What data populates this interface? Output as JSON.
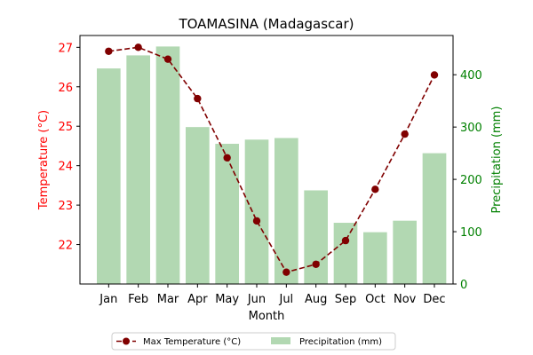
{
  "chart_data": {
    "type": "bar+line",
    "title": "TOAMASINA (Madagascar)",
    "xlabel": "Month",
    "categories": [
      "Jan",
      "Feb",
      "Mar",
      "Apr",
      "May",
      "Jun",
      "Jul",
      "Aug",
      "Sep",
      "Oct",
      "Nov",
      "Dec"
    ],
    "left_axis": {
      "label": "Temperature (°C)",
      "color": "#ff0000",
      "ylim": [
        21.0,
        27.3
      ],
      "ticks": [
        22,
        23,
        24,
        25,
        26,
        27
      ]
    },
    "right_axis": {
      "label": "Precipitation (mm)",
      "color": "#008000",
      "ylim": [
        0,
        475
      ],
      "ticks": [
        0,
        100,
        200,
        300,
        400
      ]
    },
    "series": [
      {
        "name": "Max Temperature (°C)",
        "type": "line",
        "axis": "left",
        "color": "#800000",
        "line_style": "dashed",
        "marker": "circle",
        "values": [
          26.9,
          27.0,
          26.7,
          25.7,
          24.2,
          22.6,
          21.3,
          21.5,
          22.1,
          23.4,
          24.8,
          26.3
        ]
      },
      {
        "name": "Precipitation (mm)",
        "type": "bar",
        "axis": "right",
        "color": "#b2d8b2",
        "values": [
          412,
          437,
          454,
          300,
          268,
          276,
          279,
          179,
          117,
          99,
          121,
          250
        ]
      }
    ],
    "legend": {
      "placement": "bottom-center",
      "entries": [
        "Max Temperature (°C)",
        "Precipitation (mm)"
      ]
    },
    "grid": false
  }
}
